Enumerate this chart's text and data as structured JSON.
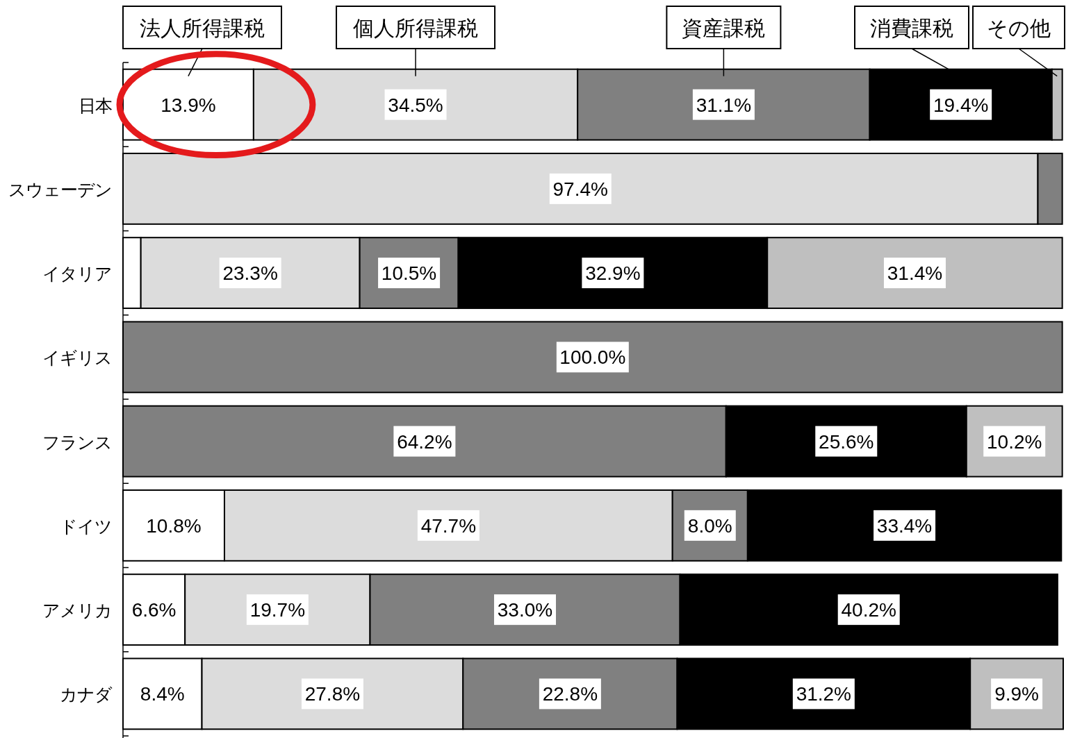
{
  "chart_data": {
    "type": "bar",
    "orientation": "horizontal",
    "stacked": true,
    "categories": [
      "日本",
      "スウェーデン",
      "イタリア",
      "イギリス",
      "フランス",
      "ドイツ",
      "アメリカ",
      "カナダ"
    ],
    "series": [
      {
        "name": "法人所得課税",
        "color": "#ffffff",
        "values": [
          13.9,
          null,
          1.9,
          null,
          null,
          10.8,
          6.6,
          8.4
        ],
        "value_labels": [
          "13.9%",
          null,
          null,
          null,
          null,
          "10.8%",
          "6.6%",
          "8.4%"
        ]
      },
      {
        "name": "個人所得課税",
        "color": "#dcdcdc",
        "values": [
          34.5,
          97.4,
          23.3,
          null,
          null,
          47.7,
          19.7,
          27.8
        ],
        "value_labels": [
          "34.5%",
          "97.4%",
          "23.3%",
          null,
          null,
          "47.7%",
          "19.7%",
          "27.8%"
        ]
      },
      {
        "name": "資産課税",
        "color": "#808080",
        "values": [
          31.1,
          2.6,
          10.5,
          100.0,
          64.2,
          8.0,
          33.0,
          22.8
        ],
        "value_labels": [
          "31.1%",
          null,
          "10.5%",
          "100.0%",
          "64.2%",
          "8.0%",
          "33.0%",
          "22.8%"
        ]
      },
      {
        "name": "消費課税",
        "color": "#000000",
        "values": [
          19.4,
          null,
          32.9,
          null,
          25.6,
          33.4,
          40.2,
          31.2
        ],
        "value_labels": [
          "19.4%",
          null,
          "32.9%",
          null,
          "25.6%",
          "33.4%",
          "40.2%",
          "31.2%"
        ]
      },
      {
        "name": "その他",
        "color": "#bfbfbf",
        "values": [
          1.1,
          null,
          31.4,
          null,
          10.2,
          null,
          null,
          9.9
        ],
        "value_labels": [
          null,
          null,
          "31.4%",
          null,
          "10.2%",
          null,
          null,
          "9.9%"
        ]
      }
    ]
  }
}
